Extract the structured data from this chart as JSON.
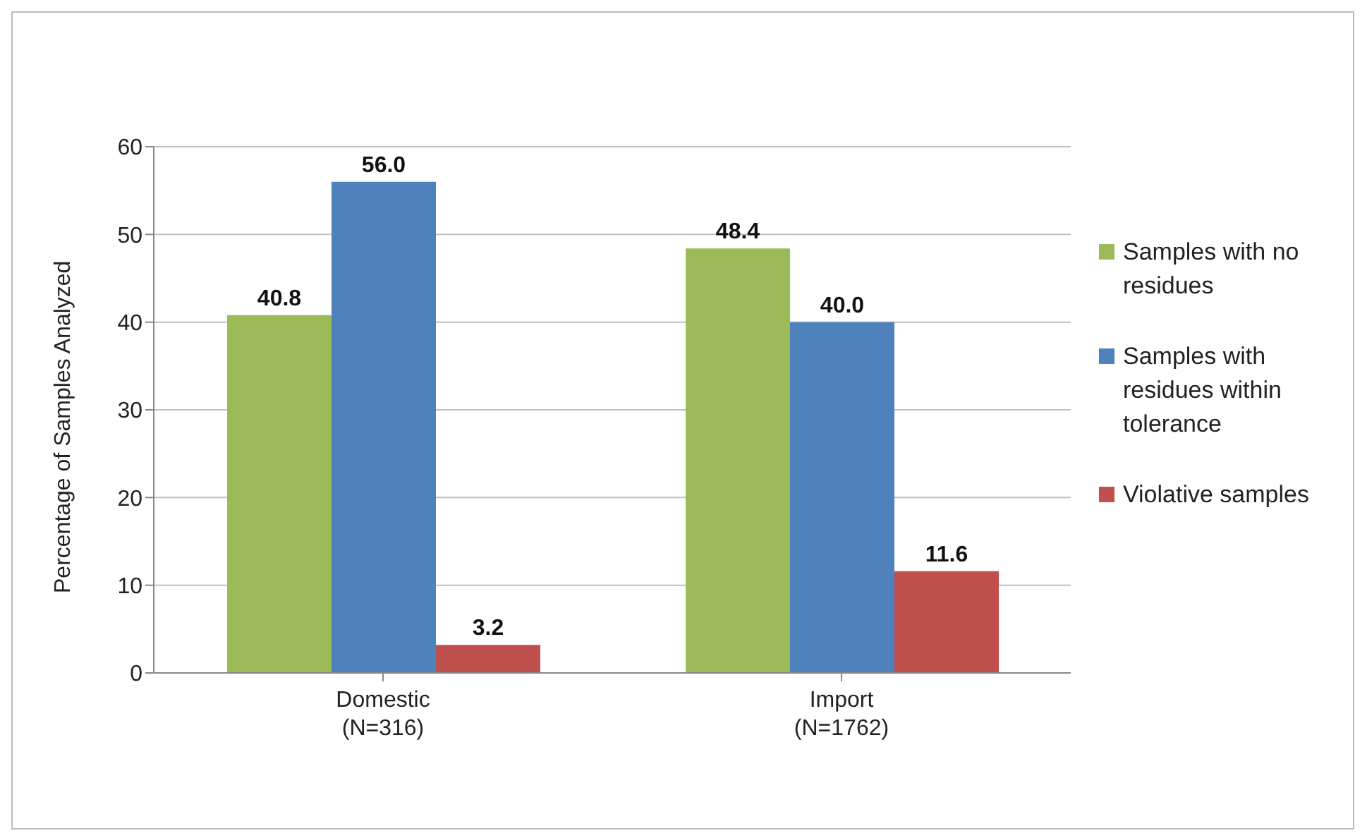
{
  "chart_data": {
    "type": "bar",
    "ylabel": "Percentage of Samples Analyzed",
    "categories": [
      "Domestic\n(N=316)",
      "Import\n(N=1762)"
    ],
    "series": [
      {
        "name": "Samples with no residues",
        "color": "#9bbb59",
        "values": [
          40.8,
          48.4
        ]
      },
      {
        "name": "Samples with residues within tolerance",
        "color": "#4f81bd",
        "values": [
          56.0,
          40.0
        ]
      },
      {
        "name": "Violative samples",
        "color": "#c0504d",
        "values": [
          3.2,
          11.6
        ]
      }
    ],
    "value_labels": [
      [
        "40.8",
        "48.4"
      ],
      [
        "56.0",
        "40.0"
      ],
      [
        "3.2",
        "11.6"
      ]
    ],
    "ylim": [
      0,
      60
    ],
    "yticks": [
      0,
      10,
      20,
      30,
      40,
      50,
      60
    ],
    "grid": "y",
    "legend": "right"
  }
}
